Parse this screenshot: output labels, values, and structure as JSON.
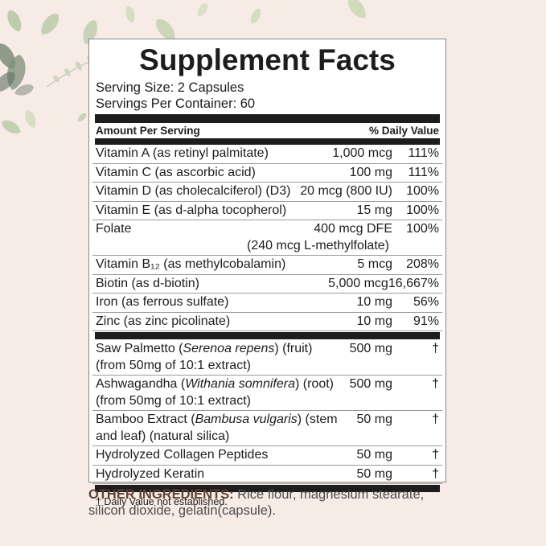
{
  "colors": {
    "background": "#f7ebe6",
    "panelBg": "#ffffff",
    "panelBorder": "#8a8a8a",
    "ink": "#1d1d1d",
    "divider": "#9a9a9a",
    "brown": "#5d4336",
    "bodyGray": "#4d4d4d",
    "leafA": "#a9c296",
    "leafB": "#c3d6ae",
    "leafC": "#7d8d77",
    "leafD": "#cedd9f"
  },
  "label": {
    "title": "Supplement Facts",
    "serving_size": "Serving Size: 2 Capsules",
    "servings_per_container": "Servings Per Container: 60",
    "column_headers": {
      "left": "Amount Per Serving",
      "right": "% Daily Value"
    },
    "nutrient_rows": [
      {
        "name": [
          {
            "t": "Vitamin A (as retinyl palmitate)"
          }
        ],
        "amount": "1,000 mcg",
        "dv": "111%"
      },
      {
        "name": [
          {
            "t": "Vitamin C (as ascorbic acid)"
          }
        ],
        "amount": "100 mg",
        "dv": "111%"
      },
      {
        "name": [
          {
            "t": "Vitamin D (as cholecalciferol) (D3)"
          }
        ],
        "amount": "20 mcg (800 IU)",
        "dv": "100%"
      },
      {
        "name": [
          {
            "t": "Vitamin E (as d-alpha tocopherol)"
          }
        ],
        "amount": "15 mg",
        "dv": "100%"
      },
      {
        "name": [
          {
            "t": "Folate"
          }
        ],
        "amount": "400 mcg DFE",
        "dv": "100%",
        "line2": "(240 mcg L-methylfolate)",
        "line2_align": "amount"
      },
      {
        "name": [
          {
            "t": "Vitamin B₁₂ (as methylcobalamin)"
          }
        ],
        "amount": "5 mcg",
        "dv": "208%"
      },
      {
        "name": [
          {
            "t": "Biotin (as d-biotin)"
          }
        ],
        "amount": "5,000 mcg",
        "dv": "16,667%"
      },
      {
        "name": [
          {
            "t": "Iron (as ferrous sulfate)"
          }
        ],
        "amount": "10 mg",
        "dv": "56%"
      },
      {
        "name": [
          {
            "t": "Zinc (as zinc picolinate)"
          }
        ],
        "amount": "10 mg",
        "dv": "91%"
      }
    ],
    "botanical_rows": [
      {
        "name": [
          {
            "t": "Saw Palmetto ("
          },
          {
            "t": "Serenoa repens",
            "i": true
          },
          {
            "t": ") (fruit)"
          }
        ],
        "line2": "(from 50mg of 10:1 extract)",
        "amount": "500 mg",
        "dv": "†"
      },
      {
        "name": [
          {
            "t": "Ashwagandha ("
          },
          {
            "t": "Withania somnifera",
            "i": true
          },
          {
            "t": ") (root)"
          }
        ],
        "line2": "(from 50mg of 10:1 extract)",
        "amount": "500 mg",
        "dv": "†"
      },
      {
        "name": [
          {
            "t": "Bamboo Extract ("
          },
          {
            "t": "Bambusa vulgaris",
            "i": true
          },
          {
            "t": ") (stem"
          }
        ],
        "line2": "and leaf) (natural silica)",
        "amount": "50 mg",
        "dv": "†"
      },
      {
        "name": [
          {
            "t": "Hydrolyzed Collagen Peptides"
          }
        ],
        "amount": "50 mg",
        "dv": "†"
      },
      {
        "name": [
          {
            "t": "Hydrolyzed Keratin"
          }
        ],
        "amount": "50 mg",
        "dv": "†"
      }
    ],
    "footnote": "† Daily Value not established."
  },
  "other_ingredients": {
    "label": "OTHER INGREDIENTS:",
    "text": " Rice flour, magnesium stearate, silicon dioxide, gelatin(capsule)."
  }
}
